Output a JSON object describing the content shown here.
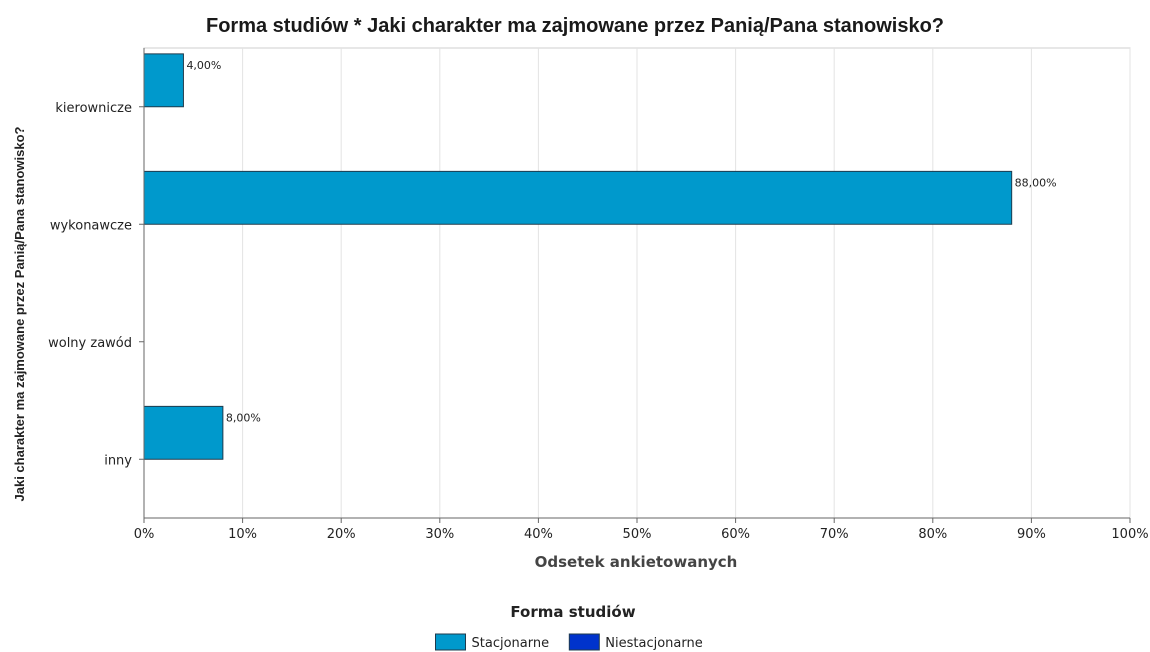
{
  "chart_data": {
    "type": "bar",
    "orientation": "horizontal",
    "title": "Forma studiów * Jaki charakter ma zajmowane przez Panią/Pana stanowisko?",
    "xlabel": "Odsetek ankietowanych",
    "ylabel": "Jaki charakter ma zajmowane przez Panią/Pana stanowisko?",
    "categories": [
      "kierownicze",
      "wykonawcze",
      "wolny zawód",
      "inny"
    ],
    "series": [
      {
        "name": "Stacjonarne",
        "color": "#0099cc",
        "values": [
          4,
          88,
          0,
          8
        ],
        "labels": [
          "4,00%",
          "88,00%",
          "",
          "8,00%"
        ]
      },
      {
        "name": "Niestacjonarne",
        "color": "#0033cc",
        "values": [
          0,
          0,
          0,
          0
        ],
        "labels": [
          "",
          "",
          "",
          ""
        ]
      }
    ],
    "xlim": [
      0,
      100
    ],
    "xticks": [
      "0%",
      "10%",
      "20%",
      "30%",
      "40%",
      "50%",
      "60%",
      "70%",
      "80%",
      "90%",
      "100%"
    ],
    "grid": true,
    "legend": {
      "title": "Forma studiów",
      "position": "bottom"
    }
  }
}
